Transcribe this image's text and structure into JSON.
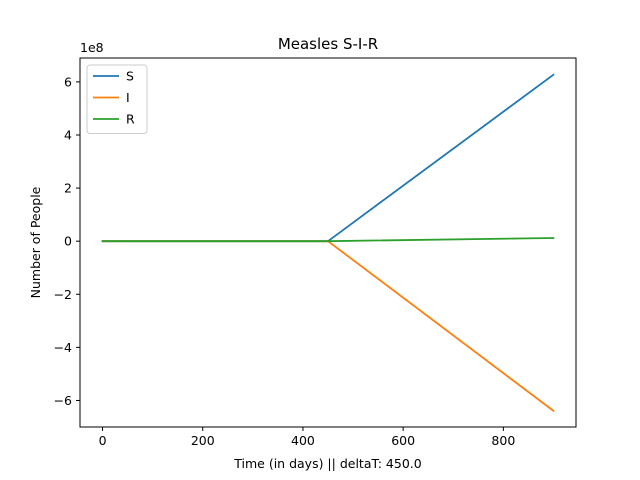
{
  "chart_data": {
    "type": "line",
    "title": "Measles S-I-R",
    "xlabel": "Time (in days) || deltaT: 450.0",
    "ylabel": "Number of People",
    "y_offset_label": "1e8",
    "xlim": [
      -45,
      945
    ],
    "ylim": [
      -7.0,
      6.9
    ],
    "x_ticks": [
      0,
      200,
      400,
      600,
      800
    ],
    "y_ticks": [
      -6,
      -4,
      -2,
      0,
      2,
      4,
      6
    ],
    "legend_position": "upper-left",
    "grid": false,
    "x": [
      0,
      450,
      900
    ],
    "series": [
      {
        "name": "S",
        "color": "#1f77b4",
        "values": [
          0,
          0,
          6.27
        ]
      },
      {
        "name": "I",
        "color": "#ff7f0e",
        "values": [
          0,
          0,
          -6.39
        ]
      },
      {
        "name": "R",
        "color": "#2ca02c",
        "values": [
          0,
          0,
          0.12
        ]
      }
    ]
  }
}
